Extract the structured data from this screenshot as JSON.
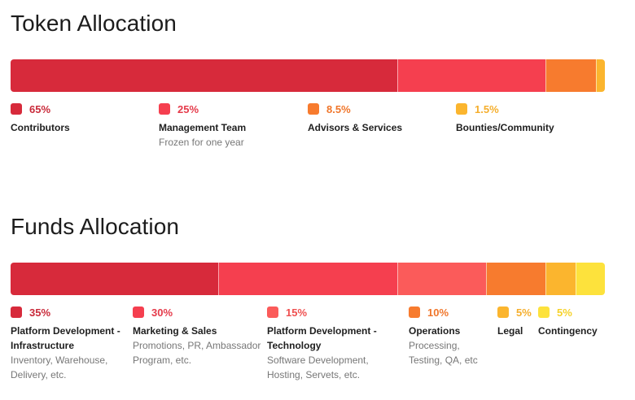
{
  "chart_data": [
    {
      "type": "bar",
      "orientation": "horizontal-stacked",
      "title": "Token Allocation",
      "unit": "%",
      "segments": [
        {
          "name": "Contributors",
          "value": 65,
          "label": "65%",
          "description": "",
          "color": "#d72a3b",
          "text_color": "#c92a3a"
        },
        {
          "name": "Management Team",
          "value": 25,
          "label": "25%",
          "description": "Frozen for one year",
          "color": "#f53f4f",
          "text_color": "#e53a4a"
        },
        {
          "name": "Advisors & Services",
          "value": 8.5,
          "label": "8.5%",
          "description": "",
          "color": "#f77b2e",
          "text_color": "#f0762b"
        },
        {
          "name": "Bounties/Community",
          "value": 1.5,
          "label": "1.5%",
          "description": "",
          "color": "#fbb52e",
          "text_color": "#f5ae2c"
        }
      ]
    },
    {
      "type": "bar",
      "orientation": "horizontal-stacked",
      "title": "Funds Allocation",
      "unit": "%",
      "segments": [
        {
          "name": "Platform Development - Infrastructure",
          "value": 35,
          "label": "35%",
          "description": "Inventory, Warehouse, Delivery, etc.",
          "color": "#d72a3b",
          "text_color": "#c92a3a"
        },
        {
          "name": "Marketing & Sales",
          "value": 30,
          "label": "30%",
          "description": "Promotions, PR, Ambassador Program, etc.",
          "color": "#f53f4f",
          "text_color": "#e53a4a"
        },
        {
          "name": "Platform Development - Technology",
          "value": 15,
          "label": "15%",
          "description": "Software Development, Hosting, Servets, etc.",
          "color": "#fb5b5a",
          "text_color": "#ef5050"
        },
        {
          "name": "Operations",
          "value": 10,
          "label": "10%",
          "description": "Processing, Testing, QA, etc",
          "color": "#f77b2e",
          "text_color": "#f0762b"
        },
        {
          "name": "Legal",
          "value": 5,
          "label": "5%",
          "description": "",
          "color": "#fbb52e",
          "text_color": "#f5ae2c"
        },
        {
          "name": "Contingency",
          "value": 5,
          "label": "5%",
          "description": "",
          "color": "#fde23c",
          "text_color": "#f6d22a"
        }
      ]
    }
  ]
}
